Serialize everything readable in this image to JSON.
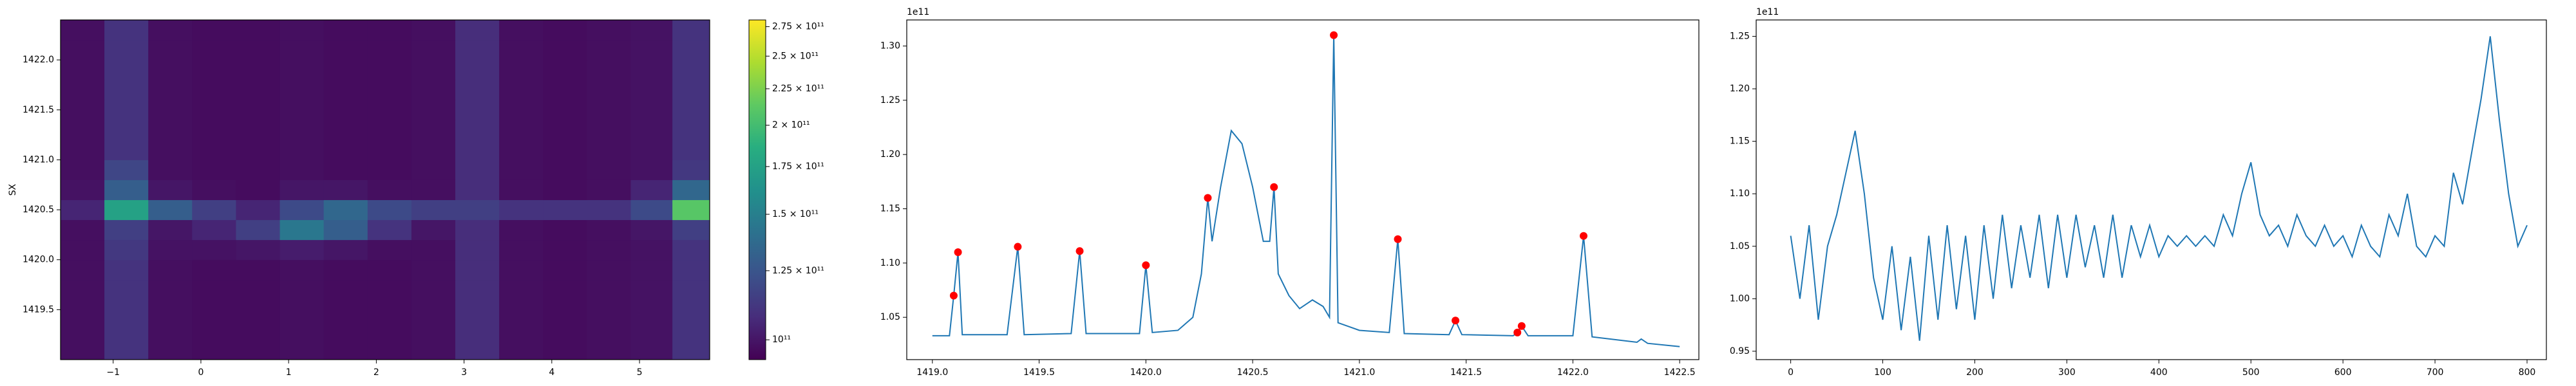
{
  "chart_data": [
    {
      "type": "heatmap",
      "ylabel": "SX",
      "colormap": "viridis",
      "x": [
        -1.35,
        -0.85,
        -0.35,
        0.15,
        0.65,
        1.15,
        1.65,
        2.15,
        2.65,
        3.15,
        3.65,
        4.15,
        4.65,
        5.15,
        5.6
      ],
      "y": [
        1419.1,
        1419.3,
        1419.5,
        1419.7,
        1419.9,
        1420.1,
        1420.3,
        1420.5,
        1420.7,
        1420.9,
        1421.1,
        1421.3,
        1421.5,
        1421.7,
        1421.9,
        1422.1,
        1422.3
      ],
      "z": [
        [
          98000000000.0,
          110000000000.0,
          98000000000.0,
          97000000000.0,
          97000000000.0,
          98000000000.0,
          97000000000.0,
          97000000000.0,
          98000000000.0,
          108000000000.0,
          98000000000.0,
          97000000000.0,
          98000000000.0,
          99000000000.0,
          110000000000.0
        ],
        [
          98000000000.0,
          110000000000.0,
          98000000000.0,
          97000000000.0,
          97000000000.0,
          98000000000.0,
          97000000000.0,
          97000000000.0,
          98000000000.0,
          108000000000.0,
          98000000000.0,
          97000000000.0,
          98000000000.0,
          99000000000.0,
          110000000000.0
        ],
        [
          98000000000.0,
          110000000000.0,
          98000000000.0,
          97000000000.0,
          97000000000.0,
          98000000000.0,
          97000000000.0,
          97000000000.0,
          98000000000.0,
          108000000000.0,
          98000000000.0,
          97000000000.0,
          98000000000.0,
          99000000000.0,
          110000000000.0
        ],
        [
          98000000000.0,
          110000000000.0,
          98000000000.0,
          97000000000.0,
          97000000000.0,
          98000000000.0,
          97000000000.0,
          97000000000.0,
          98000000000.0,
          108000000000.0,
          98000000000.0,
          97000000000.0,
          98000000000.0,
          99000000000.0,
          110000000000.0
        ],
        [
          98000000000.0,
          110000000000.0,
          98000000000.0,
          97000000000.0,
          97000000000.0,
          98000000000.0,
          97000000000.0,
          97000000000.0,
          98000000000.0,
          108000000000.0,
          98000000000.0,
          97000000000.0,
          98000000000.0,
          99000000000.0,
          110000000000.0
        ],
        [
          98000000000.0,
          112000000000.0,
          99000000000.0,
          99000000000.0,
          100000000000.0,
          102000000000.0,
          100000000000.0,
          98000000000.0,
          98000000000.0,
          108000000000.0,
          98000000000.0,
          97000000000.0,
          98000000000.0,
          99000000000.0,
          110000000000.0
        ],
        [
          98000000000.0,
          115000000000.0,
          100000000000.0,
          105000000000.0,
          115000000000.0,
          145000000000.0,
          130000000000.0,
          110000000000.0,
          100000000000.0,
          108000000000.0,
          98000000000.0,
          97000000000.0,
          98000000000.0,
          100000000000.0,
          115000000000.0
        ],
        [
          105000000000.0,
          175000000000.0,
          130000000000.0,
          115000000000.0,
          105000000000.0,
          120000000000.0,
          135000000000.0,
          120000000000.0,
          115000000000.0,
          115000000000.0,
          110000000000.0,
          110000000000.0,
          110000000000.0,
          120000000000.0,
          210000000000.0
        ],
        [
          99000000000.0,
          130000000000.0,
          100000000000.0,
          98000000000.0,
          97000000000.0,
          100000000000.0,
          100000000000.0,
          98000000000.0,
          98000000000.0,
          108000000000.0,
          98000000000.0,
          97000000000.0,
          98000000000.0,
          105000000000.0,
          135000000000.0
        ],
        [
          98000000000.0,
          118000000000.0,
          98000000000.0,
          97000000000.0,
          97000000000.0,
          98000000000.0,
          97000000000.0,
          97000000000.0,
          98000000000.0,
          108000000000.0,
          98000000000.0,
          97000000000.0,
          98000000000.0,
          99000000000.0,
          112000000000.0
        ],
        [
          98000000000.0,
          110000000000.0,
          98000000000.0,
          97000000000.0,
          97000000000.0,
          98000000000.0,
          97000000000.0,
          97000000000.0,
          98000000000.0,
          108000000000.0,
          98000000000.0,
          97000000000.0,
          98000000000.0,
          99000000000.0,
          110000000000.0
        ],
        [
          98000000000.0,
          110000000000.0,
          98000000000.0,
          97000000000.0,
          97000000000.0,
          98000000000.0,
          97000000000.0,
          97000000000.0,
          98000000000.0,
          108000000000.0,
          98000000000.0,
          97000000000.0,
          98000000000.0,
          99000000000.0,
          110000000000.0
        ],
        [
          98000000000.0,
          110000000000.0,
          98000000000.0,
          97000000000.0,
          97000000000.0,
          98000000000.0,
          97000000000.0,
          97000000000.0,
          98000000000.0,
          108000000000.0,
          98000000000.0,
          97000000000.0,
          98000000000.0,
          99000000000.0,
          110000000000.0
        ],
        [
          98000000000.0,
          110000000000.0,
          98000000000.0,
          97000000000.0,
          97000000000.0,
          98000000000.0,
          97000000000.0,
          97000000000.0,
          98000000000.0,
          108000000000.0,
          98000000000.0,
          97000000000.0,
          98000000000.0,
          99000000000.0,
          110000000000.0
        ],
        [
          98000000000.0,
          110000000000.0,
          98000000000.0,
          97000000000.0,
          97000000000.0,
          98000000000.0,
          97000000000.0,
          97000000000.0,
          98000000000.0,
          108000000000.0,
          98000000000.0,
          97000000000.0,
          98000000000.0,
          99000000000.0,
          110000000000.0
        ],
        [
          98000000000.0,
          110000000000.0,
          98000000000.0,
          97000000000.0,
          97000000000.0,
          98000000000.0,
          97000000000.0,
          97000000000.0,
          98000000000.0,
          108000000000.0,
          98000000000.0,
          97000000000.0,
          98000000000.0,
          99000000000.0,
          110000000000.0
        ],
        [
          98000000000.0,
          110000000000.0,
          98000000000.0,
          97000000000.0,
          97000000000.0,
          98000000000.0,
          97000000000.0,
          97000000000.0,
          98000000000.0,
          108000000000.0,
          98000000000.0,
          97000000000.0,
          98000000000.0,
          99000000000.0,
          110000000000.0
        ]
      ],
      "xlim": [
        -1.6,
        5.8
      ],
      "ylim": [
        1419.0,
        1422.4
      ],
      "xticks": [
        {
          "value": -1,
          "label": "−1"
        },
        0,
        1,
        2,
        3,
        4,
        5
      ],
      "yticks": [
        1419.5,
        {
          "value": 1420,
          "label": "1420.0"
        },
        1420.5,
        {
          "value": 1421,
          "label": "1421.0"
        },
        1421.5,
        {
          "value": 1422,
          "label": "1422.0"
        }
      ],
      "colorbar": {
        "scale": "log",
        "lim": [
          93800000000.0,
          281000000000.0
        ],
        "ticks": [
          {
            "value": 100000000000.0,
            "label": "10¹¹"
          },
          {
            "value": 125000000000.0,
            "label": "1.25 × 10¹¹"
          },
          {
            "value": 150000000000.0,
            "label": "1.5 × 10¹¹"
          },
          {
            "value": 175000000000.0,
            "label": "1.75 × 10¹¹"
          },
          {
            "value": 200000000000.0,
            "label": "2 × 10¹¹"
          },
          {
            "value": 225000000000.0,
            "label": "2.25 × 10¹¹"
          },
          {
            "value": 250000000000.0,
            "label": "2.5 × 10¹¹"
          },
          {
            "value": 275000000000.0,
            "label": "2.75 × 10¹¹"
          }
        ]
      }
    },
    {
      "type": "line",
      "offset_label": "1e11",
      "color": "#1f77b4",
      "x": [
        1419.0,
        1419.08,
        1419.1,
        1419.12,
        1419.14,
        1419.35,
        1419.4,
        1419.43,
        1419.65,
        1419.69,
        1419.72,
        1419.97,
        1420.0,
        1420.03,
        1420.15,
        1420.22,
        1420.26,
        1420.29,
        1420.31,
        1420.35,
        1420.4,
        1420.45,
        1420.5,
        1420.55,
        1420.58,
        1420.6,
        1420.62,
        1420.67,
        1420.72,
        1420.78,
        1420.83,
        1420.86,
        1420.88,
        1420.9,
        1421.0,
        1421.14,
        1421.18,
        1421.21,
        1421.42,
        1421.45,
        1421.48,
        1421.72,
        1421.74,
        1421.76,
        1421.79,
        1422.0,
        1422.05,
        1422.09,
        1422.3,
        1422.32,
        1422.35,
        1422.5
      ],
      "values": [
        1.033,
        1.033,
        1.07,
        1.11,
        1.034,
        1.034,
        1.115,
        1.034,
        1.035,
        1.111,
        1.035,
        1.035,
        1.098,
        1.036,
        1.038,
        1.05,
        1.09,
        1.16,
        1.12,
        1.17,
        1.222,
        1.21,
        1.17,
        1.12,
        1.12,
        1.17,
        1.09,
        1.07,
        1.058,
        1.066,
        1.06,
        1.05,
        1.31,
        1.045,
        1.038,
        1.036,
        1.122,
        1.035,
        1.034,
        1.047,
        1.034,
        1.033,
        1.036,
        1.042,
        1.033,
        1.033,
        1.125,
        1.032,
        1.027,
        1.03,
        1.026,
        1.023
      ],
      "markers": {
        "color": "#ff0000",
        "x": [
          1419.1,
          1419.12,
          1419.4,
          1419.69,
          1420.0,
          1420.29,
          1420.6,
          1420.88,
          1421.18,
          1421.45,
          1421.74,
          1421.76,
          1422.05
        ],
        "values": [
          1.07,
          1.11,
          1.115,
          1.111,
          1.098,
          1.16,
          1.17,
          1.31,
          1.122,
          1.047,
          1.036,
          1.042,
          1.125
        ]
      },
      "xlim": [
        1418.88,
        1422.59
      ],
      "ylim": [
        1.011,
        1.324
      ],
      "xticks": [
        {
          "value": 1419,
          "label": "1419.0"
        },
        1419.5,
        {
          "value": 1420,
          "label": "1420.0"
        },
        1420.5,
        {
          "value": 1421,
          "label": "1421.0"
        },
        1421.5,
        {
          "value": 1422,
          "label": "1422.0"
        },
        1422.5
      ],
      "yticks": [
        1.05,
        {
          "value": 1.1,
          "label": "1.10"
        },
        1.15,
        {
          "value": 1.2,
          "label": "1.20"
        },
        1.25,
        {
          "value": 1.3,
          "label": "1.30"
        }
      ]
    },
    {
      "type": "line",
      "offset_label": "1e11",
      "color": "#1f77b4",
      "x": [
        0,
        10,
        20,
        30,
        40,
        50,
        60,
        70,
        80,
        90,
        100,
        110,
        120,
        130,
        140,
        150,
        160,
        170,
        180,
        190,
        200,
        210,
        220,
        230,
        240,
        250,
        260,
        270,
        280,
        290,
        300,
        310,
        320,
        330,
        340,
        350,
        360,
        370,
        380,
        390,
        400,
        410,
        420,
        430,
        440,
        450,
        460,
        470,
        480,
        490,
        500,
        510,
        520,
        530,
        540,
        550,
        560,
        570,
        580,
        590,
        600,
        610,
        620,
        630,
        640,
        650,
        660,
        670,
        680,
        690,
        700,
        710,
        720,
        730,
        740,
        750,
        760,
        770,
        780,
        790,
        800
      ],
      "values": [
        1.06,
        1.0,
        1.07,
        0.98,
        1.05,
        1.08,
        1.12,
        1.16,
        1.1,
        1.02,
        0.98,
        1.05,
        0.97,
        1.04,
        0.96,
        1.06,
        0.98,
        1.07,
        0.99,
        1.06,
        0.98,
        1.07,
        1.0,
        1.08,
        1.01,
        1.07,
        1.02,
        1.08,
        1.01,
        1.08,
        1.02,
        1.08,
        1.03,
        1.07,
        1.02,
        1.08,
        1.02,
        1.07,
        1.04,
        1.07,
        1.04,
        1.06,
        1.05,
        1.06,
        1.05,
        1.06,
        1.05,
        1.08,
        1.06,
        1.1,
        1.13,
        1.08,
        1.06,
        1.07,
        1.05,
        1.08,
        1.06,
        1.05,
        1.07,
        1.05,
        1.06,
        1.04,
        1.07,
        1.05,
        1.04,
        1.08,
        1.06,
        1.1,
        1.05,
        1.04,
        1.06,
        1.05,
        1.12,
        1.09,
        1.14,
        1.19,
        1.25,
        1.17,
        1.1,
        1.05,
        1.07
      ],
      "xlim": [
        -37.5,
        821
      ],
      "ylim": [
        0.942,
        1.2656
      ],
      "xticks": [
        0,
        100,
        200,
        300,
        400,
        500,
        600,
        700,
        800
      ],
      "yticks": [
        0.95,
        {
          "value": 1.0,
          "label": "1.00"
        },
        1.05,
        {
          "value": 1.1,
          "label": "1.10"
        },
        1.15,
        {
          "value": 1.2,
          "label": "1.20"
        },
        1.25
      ]
    }
  ]
}
